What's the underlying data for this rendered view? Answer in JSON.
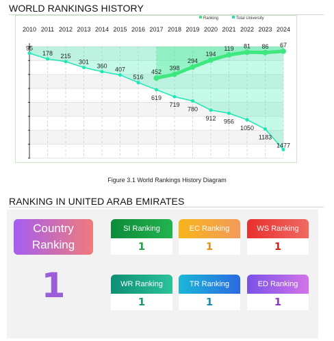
{
  "world_rankings": {
    "title": "WORLD RANKINGS HISTORY",
    "caption": "Figure 3.1 World Rankings History Diagram"
  },
  "chart_data": {
    "type": "line",
    "title": "",
    "xlabel": "",
    "ylabel": "",
    "x": [
      2010,
      2011,
      2012,
      2013,
      2014,
      2015,
      2016,
      2017,
      2018,
      2019,
      2020,
      2021,
      2022,
      2023,
      2024
    ],
    "legend": [
      "Ranking",
      "Total University"
    ],
    "legend_position": "top-right",
    "y_axis_reversed": true,
    "ylim": [
      0,
      1600
    ],
    "series": [
      {
        "name": "Ranking",
        "x": [
          2017,
          2018,
          2019,
          2020,
          2021,
          2022,
          2023,
          2024
        ],
        "values": [
          452,
          398,
          294,
          194,
          119,
          81,
          86,
          67
        ],
        "color": "#3ee87e"
      },
      {
        "name": "Total University",
        "x": [
          2010,
          2011,
          2012,
          2013,
          2014,
          2015,
          2016,
          2017,
          2018,
          2019,
          2020,
          2021,
          2022,
          2023,
          2024
        ],
        "values": [
          95,
          178,
          215,
          301,
          360,
          407,
          516,
          619,
          719,
          780,
          912,
          956,
          1050,
          1183,
          1477
        ],
        "color": "#1ee6b4"
      }
    ]
  },
  "uae_ranking": {
    "title": "RANKING IN UNITED ARAB EMIRATES",
    "country": {
      "label": "Country Ranking",
      "value": "1"
    },
    "cards": [
      {
        "label": "SI Ranking",
        "value": "1",
        "color_from": "#0f8a3a",
        "color_to": "#22b44e",
        "value_color": "#22a24a"
      },
      {
        "label": "EC Ranking",
        "value": "1",
        "color_from": "#f6b51a",
        "color_to": "#f49a5a",
        "value_color": "#f08c1a"
      },
      {
        "label": "WS Ranking",
        "value": "1",
        "color_from": "#e8302e",
        "color_to": "#f06a62",
        "value_color": "#d8281e"
      },
      {
        "label": "WR Ranking",
        "value": "1",
        "color_from": "#0d8f74",
        "color_to": "#2cc29a",
        "value_color": "#1a9a7a"
      },
      {
        "label": "TR Ranking",
        "value": "1",
        "color_from": "#1bb7d8",
        "color_to": "#2a6ae0",
        "value_color": "#1a8ab8"
      },
      {
        "label": "ED Ranking",
        "value": "1",
        "color_from": "#7a52e8",
        "color_to": "#d274e8",
        "value_color": "#8a3ad0"
      }
    ]
  }
}
